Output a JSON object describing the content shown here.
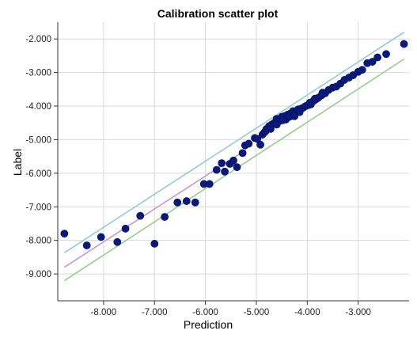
{
  "chart_data": {
    "type": "scatter",
    "title": "Calibration scatter plot",
    "xlabel": "Prediction",
    "ylabel": "Label",
    "xlim": [
      -8.9,
      -2.0
    ],
    "ylim": [
      -9.8,
      -1.5
    ],
    "x_ticks": [
      -8.0,
      -7.0,
      -6.0,
      -5.0,
      -4.0,
      -3.0
    ],
    "x_tick_labels": [
      "-8.000",
      "-7.000",
      "-6.000",
      "-5.000",
      "-4.000",
      "-3.000"
    ],
    "y_ticks": [
      -2.0,
      -3.0,
      -4.0,
      -5.0,
      -6.0,
      -7.0,
      -8.0,
      -9.0
    ],
    "y_tick_labels": [
      "-2.000",
      "-3.000",
      "-4.000",
      "-5.000",
      "-6.000",
      "-7.000",
      "-8.000",
      "-9.000"
    ],
    "grid": true,
    "point_color": "#0a1a7a",
    "points": [
      [
        -8.77,
        -7.8
      ],
      [
        -8.33,
        -8.15
      ],
      [
        -8.05,
        -7.9
      ],
      [
        -7.73,
        -8.05
      ],
      [
        -7.57,
        -7.65
      ],
      [
        -7.28,
        -7.27
      ],
      [
        -7.0,
        -8.1
      ],
      [
        -6.8,
        -7.3
      ],
      [
        -6.55,
        -6.87
      ],
      [
        -6.37,
        -6.83
      ],
      [
        -6.2,
        -6.87
      ],
      [
        -6.03,
        -6.32
      ],
      [
        -5.92,
        -6.32
      ],
      [
        -5.78,
        -5.9
      ],
      [
        -5.68,
        -5.7
      ],
      [
        -5.62,
        -5.95
      ],
      [
        -5.52,
        -5.72
      ],
      [
        -5.45,
        -5.62
      ],
      [
        -5.38,
        -5.82
      ],
      [
        -5.27,
        -5.4
      ],
      [
        -5.22,
        -5.17
      ],
      [
        -5.15,
        -5.12
      ],
      [
        -5.03,
        -4.95
      ],
      [
        -4.98,
        -4.98
      ],
      [
        -4.92,
        -5.15
      ],
      [
        -4.88,
        -4.85
      ],
      [
        -4.84,
        -4.78
      ],
      [
        -4.8,
        -4.68
      ],
      [
        -4.75,
        -4.6
      ],
      [
        -4.7,
        -4.55
      ],
      [
        -4.65,
        -4.5
      ],
      [
        -4.6,
        -4.38
      ],
      [
        -4.55,
        -4.45
      ],
      [
        -4.5,
        -4.32
      ],
      [
        -4.45,
        -4.3
      ],
      [
        -4.42,
        -4.4
      ],
      [
        -4.38,
        -4.25
      ],
      [
        -4.33,
        -4.22
      ],
      [
        -4.28,
        -4.15
      ],
      [
        -4.23,
        -4.2
      ],
      [
        -4.18,
        -4.1
      ],
      [
        -4.13,
        -4.08
      ],
      [
        -4.08,
        -4.05
      ],
      [
        -4.03,
        -4.0
      ],
      [
        -3.98,
        -3.97
      ],
      [
        -3.93,
        -3.95
      ],
      [
        -3.88,
        -3.85
      ],
      [
        -3.83,
        -3.8
      ],
      [
        -3.78,
        -3.75
      ],
      [
        -3.72,
        -3.68
      ],
      [
        -3.65,
        -3.62
      ],
      [
        -3.58,
        -3.52
      ],
      [
        -3.5,
        -3.45
      ],
      [
        -3.43,
        -3.42
      ],
      [
        -3.35,
        -3.33
      ],
      [
        -3.27,
        -3.22
      ],
      [
        -3.18,
        -3.15
      ],
      [
        -3.1,
        -3.08
      ],
      [
        -3.0,
        -2.98
      ],
      [
        -2.92,
        -2.92
      ],
      [
        -2.82,
        -2.72
      ],
      [
        -2.72,
        -2.68
      ],
      [
        -2.62,
        -2.55
      ],
      [
        -2.45,
        -2.45
      ],
      [
        -2.1,
        -2.15
      ],
      [
        -4.6,
        -4.55
      ],
      [
        -4.48,
        -4.42
      ],
      [
        -4.35,
        -4.32
      ],
      [
        -4.15,
        -4.18
      ],
      [
        -3.95,
        -3.9
      ],
      [
        -3.85,
        -3.78
      ],
      [
        -3.7,
        -3.6
      ],
      [
        -4.72,
        -4.68
      ],
      [
        -4.82,
        -4.75
      ],
      [
        -4.25,
        -4.3
      ]
    ],
    "lines": [
      {
        "color": "#93cbd6",
        "from": [
          -8.77,
          -8.37
        ],
        "to": [
          -2.1,
          -1.8
        ]
      },
      {
        "color": "#c896d2",
        "from": [
          -8.77,
          -8.8
        ],
        "to": [
          -5.2,
          -5.3
        ]
      },
      {
        "color": "#97ce8e",
        "from": [
          -8.77,
          -9.2
        ],
        "to": [
          -2.1,
          -2.6
        ]
      }
    ]
  }
}
